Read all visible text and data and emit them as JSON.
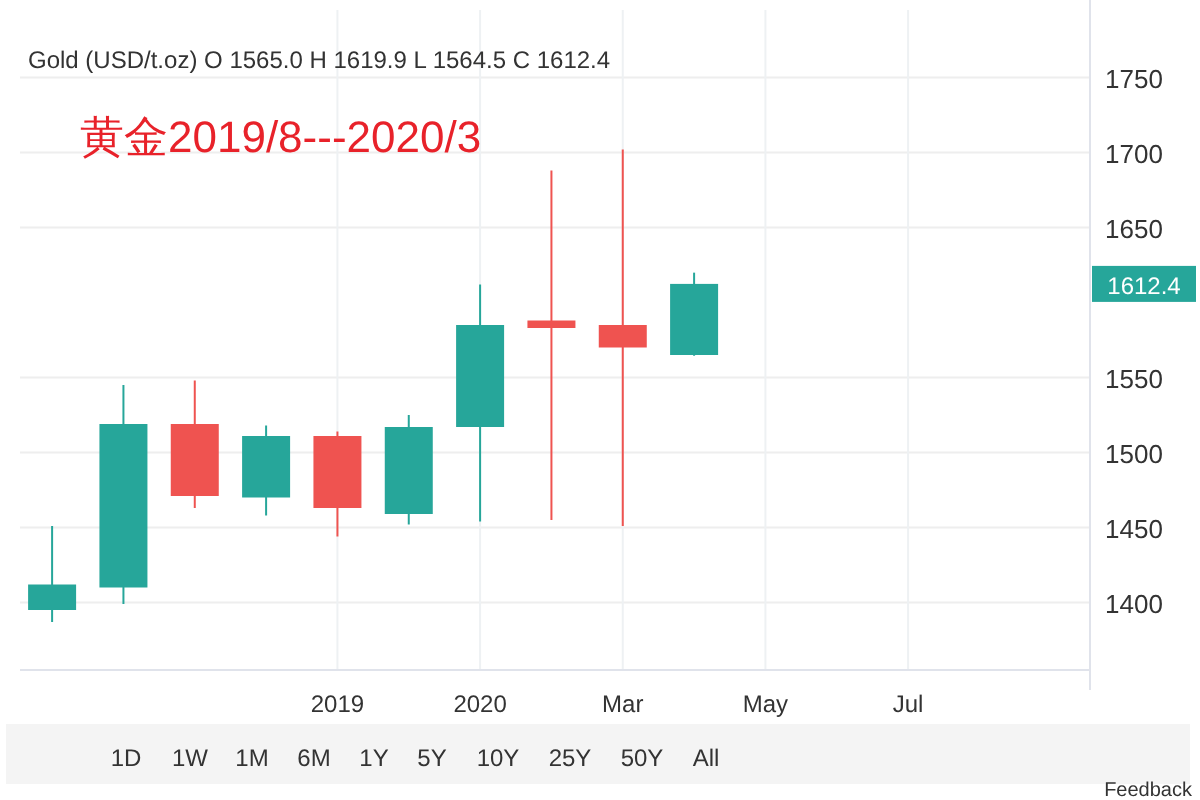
{
  "chart_data": {
    "type": "candlestick",
    "title": "Gold (USD/t.oz) O 1565.0 H 1619.9 L 1564.5 C 1612.4",
    "categories": [
      null,
      null,
      null,
      null,
      "2019",
      null,
      "2020",
      null,
      "Mar",
      null,
      "May",
      null,
      "Jul",
      null,
      null
    ],
    "ohlc": [
      [
        1395,
        1451,
        1387,
        1412
      ],
      [
        1410,
        1545,
        1399,
        1519
      ],
      [
        1519,
        1548,
        1463,
        1471
      ],
      [
        1470,
        1518,
        1458,
        1511
      ],
      [
        1511,
        1514,
        1444,
        1463
      ],
      [
        1459,
        1525,
        1452,
        1517
      ],
      [
        1517,
        1612,
        1454,
        1585
      ],
      [
        1588,
        1688,
        1455,
        1583
      ],
      [
        1585,
        1702,
        1451,
        1570
      ],
      [
        1565.0,
        1619.9,
        1564.5,
        1612.4
      ],
      null,
      null,
      null,
      null,
      null
    ],
    "colors": [
      "#26a69a",
      "#26a69a",
      "#ef5350",
      "#26a69a",
      "#ef5350",
      "#26a69a",
      "#26a69a",
      "#ef5350",
      "#ef5350",
      "#26a69a",
      null,
      null,
      null,
      null,
      null
    ],
    "ylim": [
      1355,
      1795
    ],
    "yticks": [
      1400,
      1450,
      1500,
      1550,
      1650,
      1700,
      1750
    ],
    "grid": true,
    "annotations": [
      "黄金2019/8---2020/3",
      "1612.4",
      "1D",
      "1W",
      "1M",
      "6M",
      "1Y",
      "5Y",
      "10Y",
      "25Y",
      "50Y",
      "All",
      "Feedback"
    ]
  }
}
